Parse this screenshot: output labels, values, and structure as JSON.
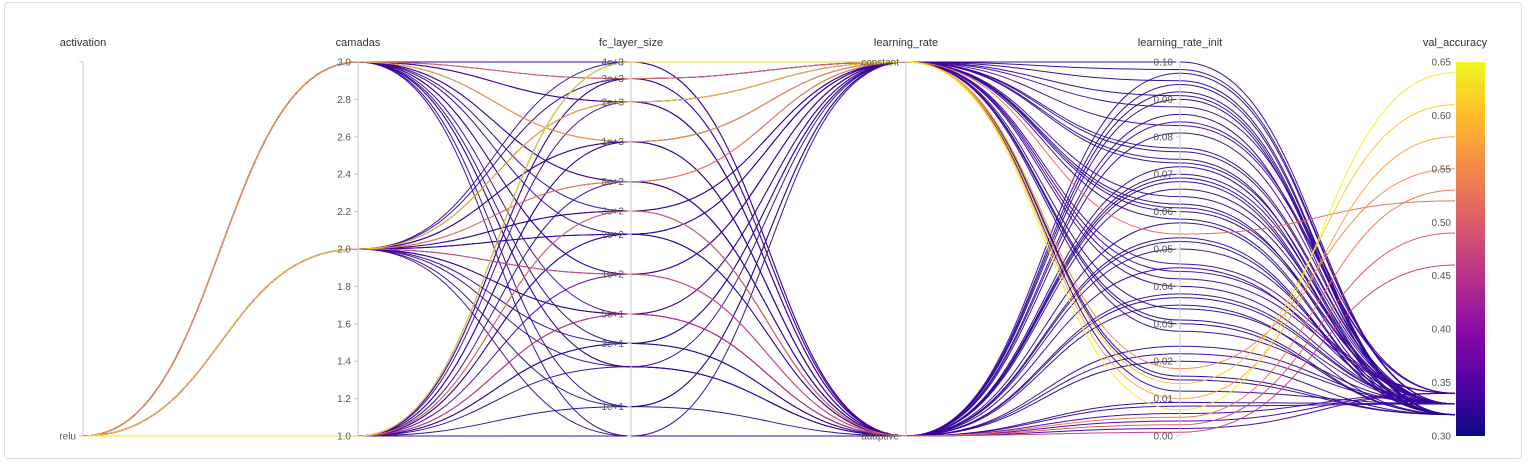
{
  "chart_data": {
    "type": "parallel_coordinates",
    "colorscale": {
      "name": "val_accuracy",
      "range": [
        0.3,
        0.65
      ],
      "stops": [
        "#0d0887",
        "#5302a3",
        "#8b0aa5",
        "#b83289",
        "#db5c68",
        "#f48849",
        "#febd2a",
        "#f0f921"
      ],
      "ticks": [
        "0.65",
        "0.60",
        "0.55",
        "0.50",
        "0.45",
        "0.40",
        "0.35",
        "0.30"
      ],
      "tick_values": [
        0.65,
        0.6,
        0.55,
        0.5,
        0.45,
        0.4,
        0.35,
        0.3
      ]
    },
    "dimensions": [
      {
        "label": "activation",
        "type": "categorical",
        "categories": [
          "relu"
        ],
        "ticks": [
          "relu"
        ]
      },
      {
        "label": "camadas",
        "type": "numeric",
        "range": [
          1.0,
          3.0
        ],
        "ticks": [
          "3.0",
          "2.8",
          "2.6",
          "2.4",
          "2.2",
          "2.0",
          "1.8",
          "1.6",
          "1.4",
          "1.2",
          "1.0"
        ]
      },
      {
        "label": "fc_layer_size",
        "type": "log",
        "range": [
          6,
          4000
        ],
        "ticks": [
          "4e+3",
          "3e+3",
          "2e+3",
          "1e+3",
          "5e+2",
          "3e+2",
          "2e+2",
          "1e+2",
          "5e+1",
          "3e+1",
          "1e+1"
        ]
      },
      {
        "label": "learning_rate",
        "type": "categorical",
        "categories": [
          "constant",
          "adaptive"
        ],
        "ticks": [
          "constant",
          "adaptive"
        ]
      },
      {
        "label": "learning_rate_init",
        "type": "numeric",
        "range": [
          0.0,
          0.1
        ],
        "ticks": [
          "0.10",
          "0.09",
          "0.08",
          "0.07",
          "0.06",
          "0.05",
          "0.04",
          "0.03",
          "0.02",
          "0.01",
          "0.00"
        ]
      },
      {
        "label": "val_accuracy",
        "type": "numeric",
        "range": [
          0.3,
          0.65
        ],
        "ticks": [
          "0.65",
          "0.60",
          "0.55",
          "0.50",
          "0.45",
          "0.40",
          "0.35",
          "0.30"
        ]
      }
    ],
    "samples": [
      {
        "camadas": 3,
        "fc_layer_size": 4000,
        "learning_rate": "constant",
        "learning_rate_init": 0.1,
        "val_accuracy": 0.33
      },
      {
        "camadas": 3,
        "fc_layer_size": 3000,
        "learning_rate": "constant",
        "learning_rate_init": 0.095,
        "val_accuracy": 0.32
      },
      {
        "camadas": 3,
        "fc_layer_size": 2000,
        "learning_rate": "constant",
        "learning_rate_init": 0.088,
        "val_accuracy": 0.34
      },
      {
        "camadas": 3,
        "fc_layer_size": 1000,
        "learning_rate": "adaptive",
        "learning_rate_init": 0.081,
        "val_accuracy": 0.33
      },
      {
        "camadas": 3,
        "fc_layer_size": 500,
        "learning_rate": "constant",
        "learning_rate_init": 0.074,
        "val_accuracy": 0.32
      },
      {
        "camadas": 3,
        "fc_layer_size": 300,
        "learning_rate": "adaptive",
        "learning_rate_init": 0.066,
        "val_accuracy": 0.33
      },
      {
        "camadas": 3,
        "fc_layer_size": 200,
        "learning_rate": "constant",
        "learning_rate_init": 0.058,
        "val_accuracy": 0.32
      },
      {
        "camadas": 3,
        "fc_layer_size": 100,
        "learning_rate": "adaptive",
        "learning_rate_init": 0.05,
        "val_accuracy": 0.33
      },
      {
        "camadas": 3,
        "fc_layer_size": 50,
        "learning_rate": "constant",
        "learning_rate_init": 0.042,
        "val_accuracy": 0.34
      },
      {
        "camadas": 3,
        "fc_layer_size": 30,
        "learning_rate": "adaptive",
        "learning_rate_init": 0.035,
        "val_accuracy": 0.32
      },
      {
        "camadas": 3,
        "fc_layer_size": 20,
        "learning_rate": "constant",
        "learning_rate_init": 0.028,
        "val_accuracy": 0.33
      },
      {
        "camadas": 3,
        "fc_layer_size": 10,
        "learning_rate": "adaptive",
        "learning_rate_init": 0.02,
        "val_accuracy": 0.32
      },
      {
        "camadas": 3,
        "fc_layer_size": 6,
        "learning_rate": "constant",
        "learning_rate_init": 0.012,
        "val_accuracy": 0.33
      },
      {
        "camadas": 3,
        "fc_layer_size": 4000,
        "learning_rate": "adaptive",
        "learning_rate_init": 0.006,
        "val_accuracy": 0.34
      },
      {
        "camadas": 3,
        "fc_layer_size": 2000,
        "learning_rate": "adaptive",
        "learning_rate_init": 0.092,
        "val_accuracy": 0.32
      },
      {
        "camadas": 3,
        "fc_layer_size": 500,
        "learning_rate": "adaptive",
        "learning_rate_init": 0.07,
        "val_accuracy": 0.33
      },
      {
        "camadas": 3,
        "fc_layer_size": 100,
        "learning_rate": "constant",
        "learning_rate_init": 0.062,
        "val_accuracy": 0.32
      },
      {
        "camadas": 3,
        "fc_layer_size": 20,
        "learning_rate": "adaptive",
        "learning_rate_init": 0.045,
        "val_accuracy": 0.33
      },
      {
        "camadas": 3,
        "fc_layer_size": 3000,
        "learning_rate": "constant",
        "learning_rate_init": 0.054,
        "val_accuracy": 0.52
      },
      {
        "camadas": 3,
        "fc_layer_size": 1000,
        "learning_rate": "constant",
        "learning_rate_init": 0.01,
        "val_accuracy": 0.58
      },
      {
        "camadas": 2,
        "fc_layer_size": 4000,
        "learning_rate": "constant",
        "learning_rate_init": 0.098,
        "val_accuracy": 0.33
      },
      {
        "camadas": 2,
        "fc_layer_size": 3000,
        "learning_rate": "adaptive",
        "learning_rate_init": 0.09,
        "val_accuracy": 0.32
      },
      {
        "camadas": 2,
        "fc_layer_size": 2000,
        "learning_rate": "constant",
        "learning_rate_init": 0.083,
        "val_accuracy": 0.34
      },
      {
        "camadas": 2,
        "fc_layer_size": 1000,
        "learning_rate": "constant",
        "learning_rate_init": 0.076,
        "val_accuracy": 0.33
      },
      {
        "camadas": 2,
        "fc_layer_size": 500,
        "learning_rate": "adaptive",
        "learning_rate_init": 0.068,
        "val_accuracy": 0.32
      },
      {
        "camadas": 2,
        "fc_layer_size": 300,
        "learning_rate": "constant",
        "learning_rate_init": 0.06,
        "val_accuracy": 0.33
      },
      {
        "camadas": 2,
        "fc_layer_size": 200,
        "learning_rate": "adaptive",
        "learning_rate_init": 0.052,
        "val_accuracy": 0.32
      },
      {
        "camadas": 2,
        "fc_layer_size": 100,
        "learning_rate": "constant",
        "learning_rate_init": 0.044,
        "val_accuracy": 0.34
      },
      {
        "camadas": 2,
        "fc_layer_size": 50,
        "learning_rate": "adaptive",
        "learning_rate_init": 0.037,
        "val_accuracy": 0.33
      },
      {
        "camadas": 2,
        "fc_layer_size": 30,
        "learning_rate": "constant",
        "learning_rate_init": 0.03,
        "val_accuracy": 0.32
      },
      {
        "camadas": 2,
        "fc_layer_size": 20,
        "learning_rate": "adaptive",
        "learning_rate_init": 0.022,
        "val_accuracy": 0.33
      },
      {
        "camadas": 2,
        "fc_layer_size": 10,
        "learning_rate": "constant",
        "learning_rate_init": 0.015,
        "val_accuracy": 0.32
      },
      {
        "camadas": 2,
        "fc_layer_size": 6,
        "learning_rate": "adaptive",
        "learning_rate_init": 0.008,
        "val_accuracy": 0.33
      },
      {
        "camadas": 2,
        "fc_layer_size": 2000,
        "learning_rate": "adaptive",
        "learning_rate_init": 0.004,
        "val_accuracy": 0.34
      },
      {
        "camadas": 2,
        "fc_layer_size": 300,
        "learning_rate": "adaptive",
        "learning_rate_init": 0.086,
        "val_accuracy": 0.32
      },
      {
        "camadas": 2,
        "fc_layer_size": 50,
        "learning_rate": "constant",
        "learning_rate_init": 0.064,
        "val_accuracy": 0.33
      },
      {
        "camadas": 2,
        "fc_layer_size": 1000,
        "learning_rate": "adaptive",
        "learning_rate_init": 0.072,
        "val_accuracy": 0.32
      },
      {
        "camadas": 2,
        "fc_layer_size": 200,
        "learning_rate": "constant",
        "learning_rate_init": 0.04,
        "val_accuracy": 0.33
      },
      {
        "camadas": 2,
        "fc_layer_size": 500,
        "learning_rate": "constant",
        "learning_rate_init": 0.018,
        "val_accuracy": 0.55
      },
      {
        "camadas": 2,
        "fc_layer_size": 2000,
        "learning_rate": "constant",
        "learning_rate_init": 0.014,
        "val_accuracy": 0.61
      },
      {
        "camadas": 2,
        "fc_layer_size": 100,
        "learning_rate": "adaptive",
        "learning_rate_init": 0.003,
        "val_accuracy": 0.49
      },
      {
        "camadas": 1,
        "fc_layer_size": 4000,
        "learning_rate": "adaptive",
        "learning_rate_init": 0.097,
        "val_accuracy": 0.33
      },
      {
        "camadas": 1,
        "fc_layer_size": 3000,
        "learning_rate": "constant",
        "learning_rate_init": 0.091,
        "val_accuracy": 0.32
      },
      {
        "camadas": 1,
        "fc_layer_size": 2000,
        "learning_rate": "adaptive",
        "learning_rate_init": 0.084,
        "val_accuracy": 0.34
      },
      {
        "camadas": 1,
        "fc_layer_size": 1000,
        "learning_rate": "constant",
        "learning_rate_init": 0.077,
        "val_accuracy": 0.33
      },
      {
        "camadas": 1,
        "fc_layer_size": 500,
        "learning_rate": "adaptive",
        "learning_rate_init": 0.069,
        "val_accuracy": 0.32
      },
      {
        "camadas": 1,
        "fc_layer_size": 300,
        "learning_rate": "constant",
        "learning_rate_init": 0.061,
        "val_accuracy": 0.33
      },
      {
        "camadas": 1,
        "fc_layer_size": 200,
        "learning_rate": "adaptive",
        "learning_rate_init": 0.053,
        "val_accuracy": 0.32
      },
      {
        "camadas": 1,
        "fc_layer_size": 100,
        "learning_rate": "constant",
        "learning_rate_init": 0.046,
        "val_accuracy": 0.34
      },
      {
        "camadas": 1,
        "fc_layer_size": 50,
        "learning_rate": "adaptive",
        "learning_rate_init": 0.038,
        "val_accuracy": 0.33
      },
      {
        "camadas": 1,
        "fc_layer_size": 30,
        "learning_rate": "constant",
        "learning_rate_init": 0.031,
        "val_accuracy": 0.32
      },
      {
        "camadas": 1,
        "fc_layer_size": 20,
        "learning_rate": "adaptive",
        "learning_rate_init": 0.024,
        "val_accuracy": 0.33
      },
      {
        "camadas": 1,
        "fc_layer_size": 10,
        "learning_rate": "constant",
        "learning_rate_init": 0.016,
        "val_accuracy": 0.32
      },
      {
        "camadas": 1,
        "fc_layer_size": 6,
        "learning_rate": "adaptive",
        "learning_rate_init": 0.009,
        "val_accuracy": 0.33
      },
      {
        "camadas": 1,
        "fc_layer_size": 3000,
        "learning_rate": "adaptive",
        "learning_rate_init": 0.002,
        "val_accuracy": 0.34
      },
      {
        "camadas": 1,
        "fc_layer_size": 1000,
        "learning_rate": "adaptive",
        "learning_rate_init": 0.094,
        "val_accuracy": 0.32
      },
      {
        "camadas": 1,
        "fc_layer_size": 200,
        "learning_rate": "constant",
        "learning_rate_init": 0.073,
        "val_accuracy": 0.33
      },
      {
        "camadas": 1,
        "fc_layer_size": 30,
        "learning_rate": "adaptive",
        "learning_rate_init": 0.057,
        "val_accuracy": 0.32
      },
      {
        "camadas": 1,
        "fc_layer_size": 4000,
        "learning_rate": "constant",
        "learning_rate_init": 0.034,
        "val_accuracy": 0.33
      },
      {
        "camadas": 1,
        "fc_layer_size": 300,
        "learning_rate": "adaptive",
        "learning_rate_init": 0.005,
        "val_accuracy": 0.53
      },
      {
        "camadas": 1,
        "fc_layer_size": 4000,
        "learning_rate": "constant",
        "learning_rate_init": 0.007,
        "val_accuracy": 0.64
      },
      {
        "camadas": 1,
        "fc_layer_size": 50,
        "learning_rate": "adaptive",
        "learning_rate_init": 0.001,
        "val_accuracy": 0.46
      }
    ]
  }
}
